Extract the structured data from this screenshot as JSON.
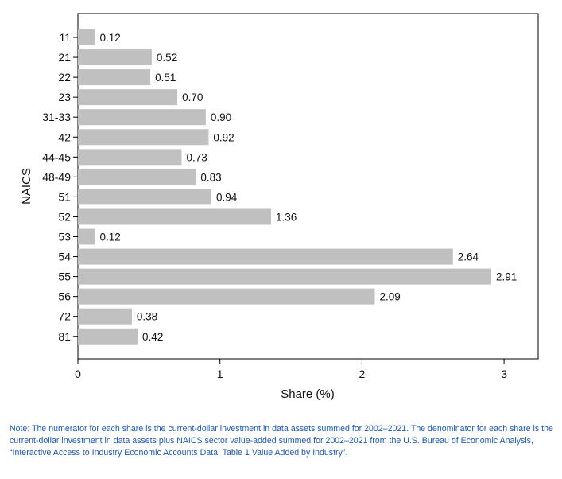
{
  "chart_data": {
    "type": "bar",
    "orientation": "horizontal",
    "categories": [
      "11",
      "21",
      "22",
      "23",
      "31-33",
      "42",
      "44-45",
      "48-49",
      "51",
      "52",
      "53",
      "54",
      "55",
      "56",
      "72",
      "81"
    ],
    "values": [
      0.12,
      0.52,
      0.51,
      0.7,
      0.9,
      0.92,
      0.73,
      0.83,
      0.94,
      1.36,
      0.12,
      2.64,
      2.91,
      2.09,
      0.38,
      0.42
    ],
    "value_labels": [
      "0.12",
      "0.52",
      "0.51",
      "0.70",
      "0.90",
      "0.92",
      "0.73",
      "0.83",
      "0.94",
      "1.36",
      "0.12",
      "2.64",
      "2.91",
      "2.09",
      "0.38",
      "0.42"
    ],
    "xlabel": "Share (%)",
    "ylabel": "NAICS",
    "xlim": [
      0,
      3.25
    ],
    "xticks": [
      "0",
      "1",
      "2",
      "3"
    ],
    "grid": false,
    "bar_color": "#c0c0c0"
  },
  "note": "Note: The numerator for each share is the current-dollar investment in data assets summed for 2002–2021. The denominator for each share is the current-dollar investment in data assets plus NAICS sector value-added summed for 2002–2021 from the U.S. Bureau of Economic Analysis, “Interactive Access to Industry Economic Accounts Data: Table 1 Value Added by Industry”.",
  "colors": {
    "note_text": "#1f5aa6",
    "axis": "#000000"
  }
}
